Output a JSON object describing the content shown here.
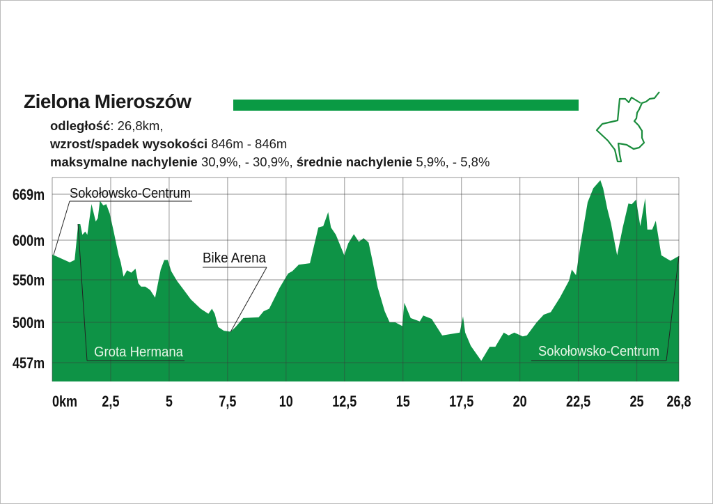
{
  "header": {
    "title": "Zielona Mieroszów",
    "distance_label": "odległość",
    "distance_value": ": 26,8km,",
    "elev_label": "wzrost/spadek wysokości",
    "elev_value": " 846m - 846m",
    "maxslope_label": "maksymalne nachylenie",
    "maxslope_value": " 30,9%, - 30,9%,",
    "avgslope_label": " średnie nachylenie",
    "avgslope_value": " 5,9%, - 5,8%"
  },
  "colors": {
    "fill": "#0e9346",
    "accent": "#0a9a44",
    "map": "#1a8c3c"
  },
  "chart_data": {
    "type": "area",
    "title": "Zielona Mieroszów",
    "xlabel": "km",
    "ylabel": "m",
    "xlim": [
      0,
      26.8
    ],
    "x_ticks": [
      0,
      2.5,
      5,
      7.5,
      10,
      12.5,
      15,
      17.5,
      20,
      22.5,
      25,
      26.8
    ],
    "x_tick_labels": [
      "0km",
      "2,5",
      "5",
      "7,5",
      "10",
      "12,5",
      "15",
      "17,5",
      "20",
      "22,5",
      "25",
      "26,8"
    ],
    "y_ticks": [
      457,
      500,
      550,
      600,
      669
    ],
    "y_tick_labels": [
      "457m",
      "500m",
      "550m",
      "600m",
      "669m"
    ],
    "grid": true,
    "x": [
      0,
      0.75,
      0.96,
      1.11,
      1.2,
      1.29,
      1.41,
      1.5,
      1.68,
      1.86,
      1.95,
      2.04,
      2.19,
      2.31,
      2.46,
      2.63,
      2.84,
      2.93,
      3.05,
      3.2,
      3.38,
      3.56,
      3.68,
      3.8,
      3.98,
      4.19,
      4.4,
      4.64,
      4.79,
      4.94,
      5.09,
      5.33,
      5.63,
      5.93,
      6.35,
      6.68,
      6.83,
      6.95,
      7.1,
      7.34,
      7.63,
      7.84,
      8.17,
      8.83,
      9.04,
      9.28,
      9.73,
      10.09,
      10.27,
      10.54,
      11.02,
      11.38,
      11.59,
      11.8,
      11.92,
      12.13,
      12.49,
      12.66,
      12.9,
      13.11,
      13.32,
      13.53,
      13.71,
      13.92,
      14.22,
      14.43,
      14.67,
      14.97,
      15.06,
      15.33,
      15.72,
      15.87,
      16.23,
      16.68,
      17.43,
      17.57,
      17.66,
      17.9,
      18.35,
      18.71,
      18.95,
      19.31,
      19.52,
      19.76,
      20.12,
      20.3,
      20.72,
      21.02,
      21.32,
      21.71,
      22.1,
      22.22,
      22.4,
      22.6,
      22.9,
      23.14,
      23.44,
      23.56,
      23.74,
      23.89,
      24.16,
      24.4,
      24.64,
      24.79,
      24.97,
      25.15,
      25.36,
      25.45,
      25.66,
      25.81,
      26.05,
      26.44,
      26.8
    ],
    "elevation": [
      582,
      572,
      575,
      624,
      624,
      608,
      613,
      608,
      654,
      628,
      633,
      659,
      652,
      654,
      640,
      613,
      581,
      572,
      554,
      562,
      559,
      564,
      546,
      542,
      542,
      538,
      529,
      563,
      575,
      575,
      561,
      549,
      538,
      527,
      516,
      510,
      516,
      510,
      495,
      491,
      490,
      495,
      505,
      506,
      513,
      516,
      541,
      558,
      561,
      569,
      571,
      619,
      621,
      642,
      619,
      608,
      581,
      596,
      609,
      598,
      603,
      597,
      572,
      541,
      513,
      500,
      500,
      496,
      523,
      505,
      501,
      508,
      504,
      486,
      489,
      507,
      489,
      475,
      459,
      474,
      474,
      489,
      486,
      489,
      485,
      486,
      500,
      509,
      512,
      529,
      549,
      563,
      556,
      596,
      657,
      678,
      690,
      678,
      647,
      626,
      581,
      619,
      655,
      654,
      661,
      621,
      663,
      616,
      616,
      629,
      581,
      574,
      580
    ],
    "annotations": [
      {
        "text": "Sokołowsko-Centrum",
        "km": 0
      },
      {
        "text": "Grota Hermana",
        "km": 1.11
      },
      {
        "text": "Bike Arena",
        "km": 7.63
      },
      {
        "text": "Sokołowsko-Centrum",
        "km": 26.8
      }
    ]
  }
}
